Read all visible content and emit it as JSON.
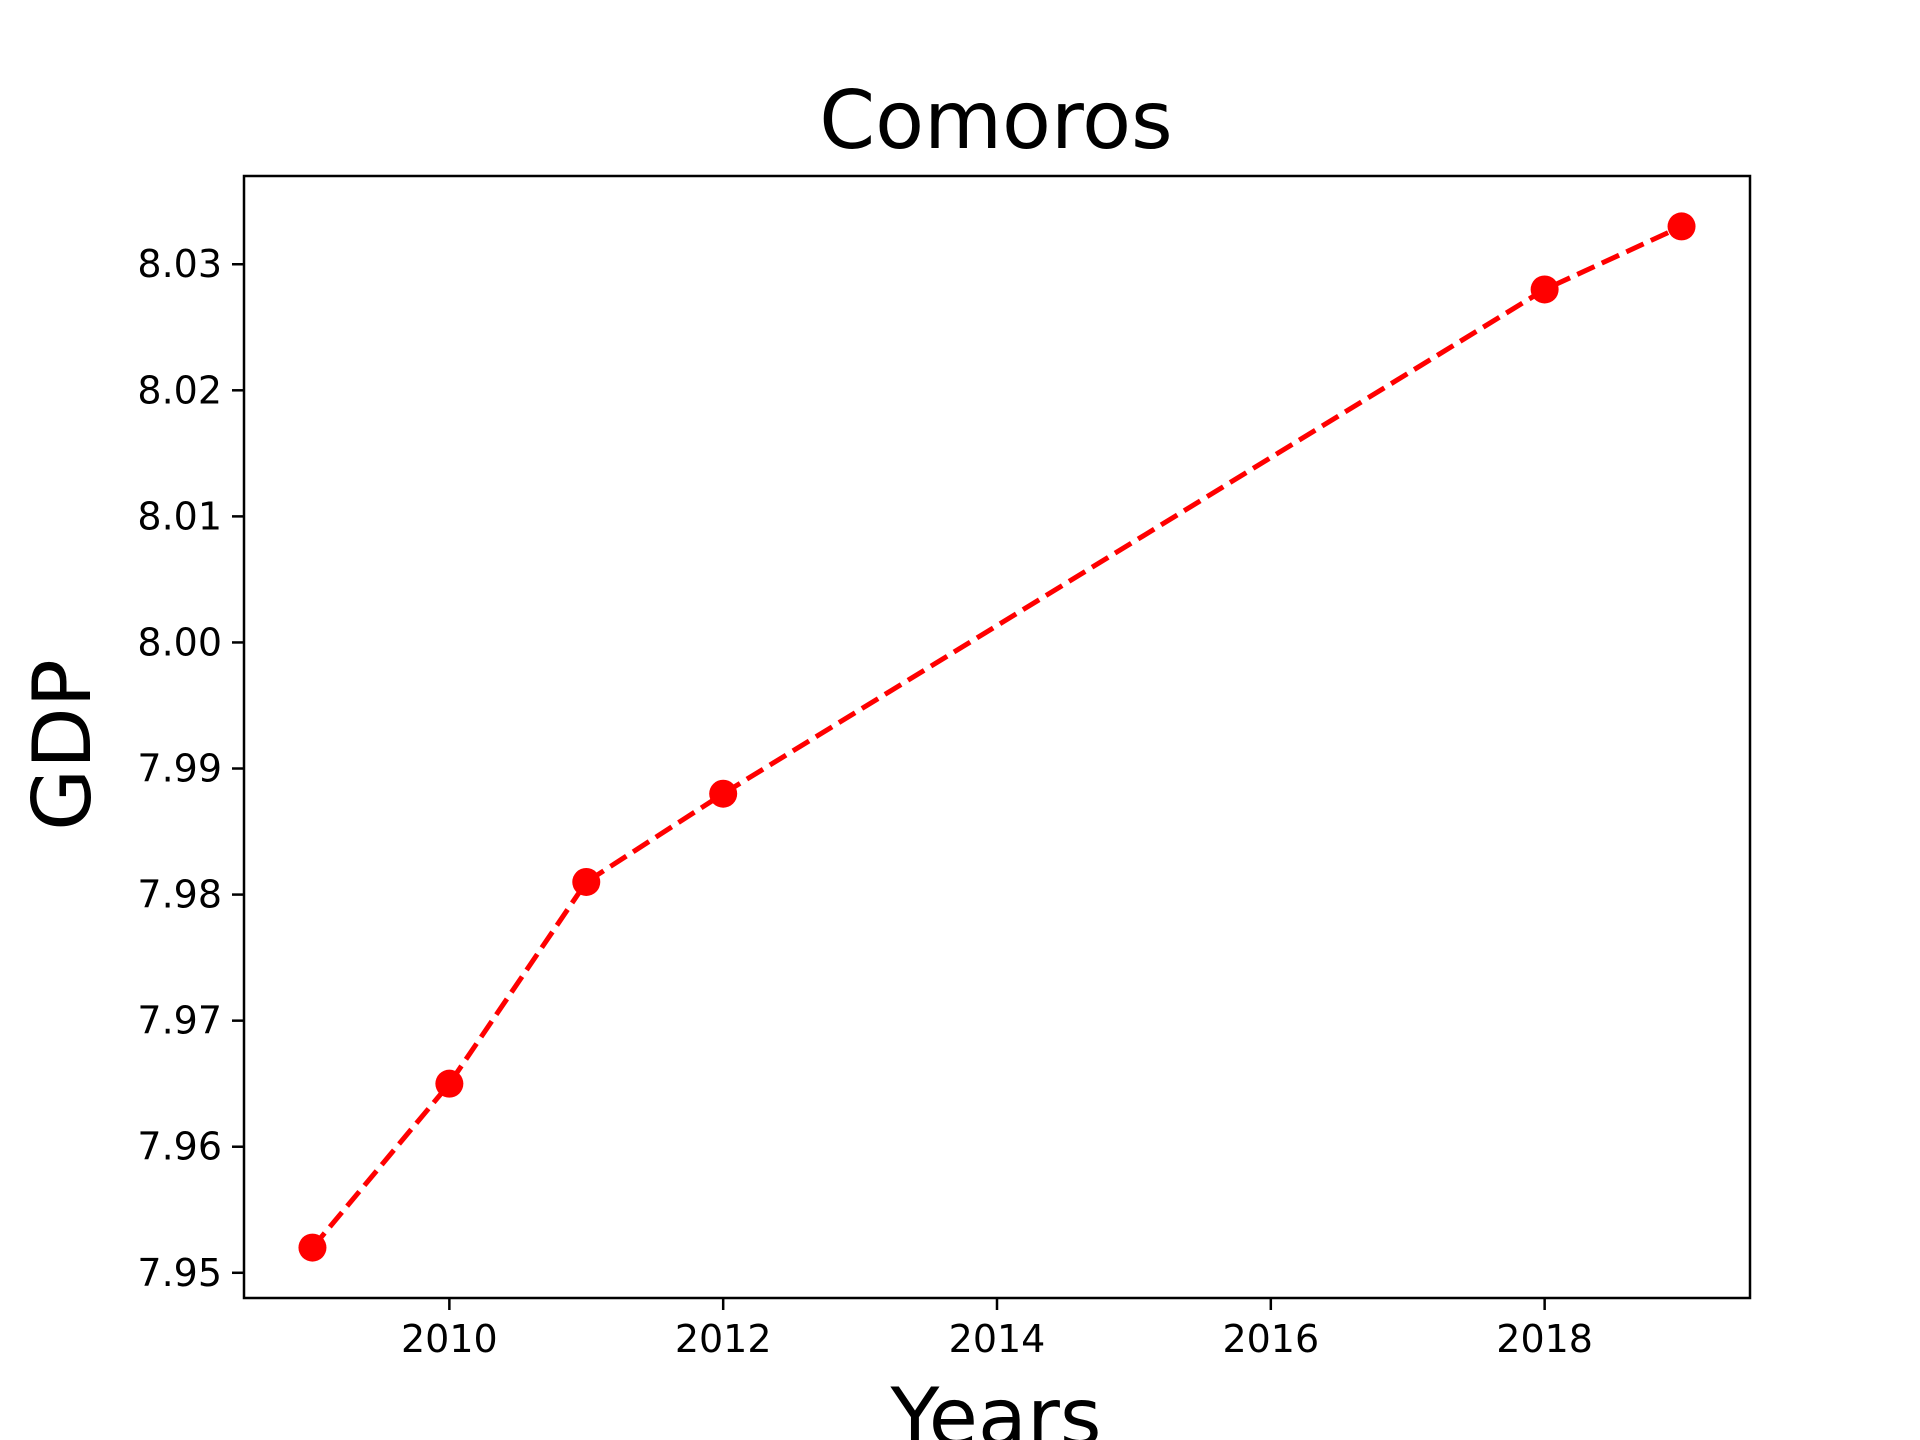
{
  "chart_data": {
    "type": "line",
    "title": "Comoros",
    "xlabel": "Years",
    "ylabel": "GDP",
    "x": [
      2009,
      2010,
      2011,
      2012,
      2018,
      2019
    ],
    "series": [
      {
        "values": [
          7.952,
          7.965,
          7.981,
          7.988,
          8.028,
          8.033
        ],
        "color": "#ff0000",
        "line_style": "dashed",
        "marker": "circle"
      }
    ],
    "xlim": [
      2008.5,
      2019.5
    ],
    "ylim": [
      7.948,
      8.037
    ],
    "xticks": [
      2010,
      2012,
      2014,
      2016,
      2018
    ],
    "xtick_labels": [
      "2010",
      "2012",
      "2014",
      "2016",
      "2018"
    ],
    "yticks": [
      7.95,
      7.96,
      7.97,
      7.98,
      7.99,
      8.0,
      8.01,
      8.02,
      8.03
    ],
    "ytick_labels": [
      "7.95",
      "7.96",
      "7.97",
      "7.98",
      "7.99",
      "8.00",
      "8.01",
      "8.02",
      "8.03"
    ],
    "grid": false,
    "legend": "none"
  }
}
